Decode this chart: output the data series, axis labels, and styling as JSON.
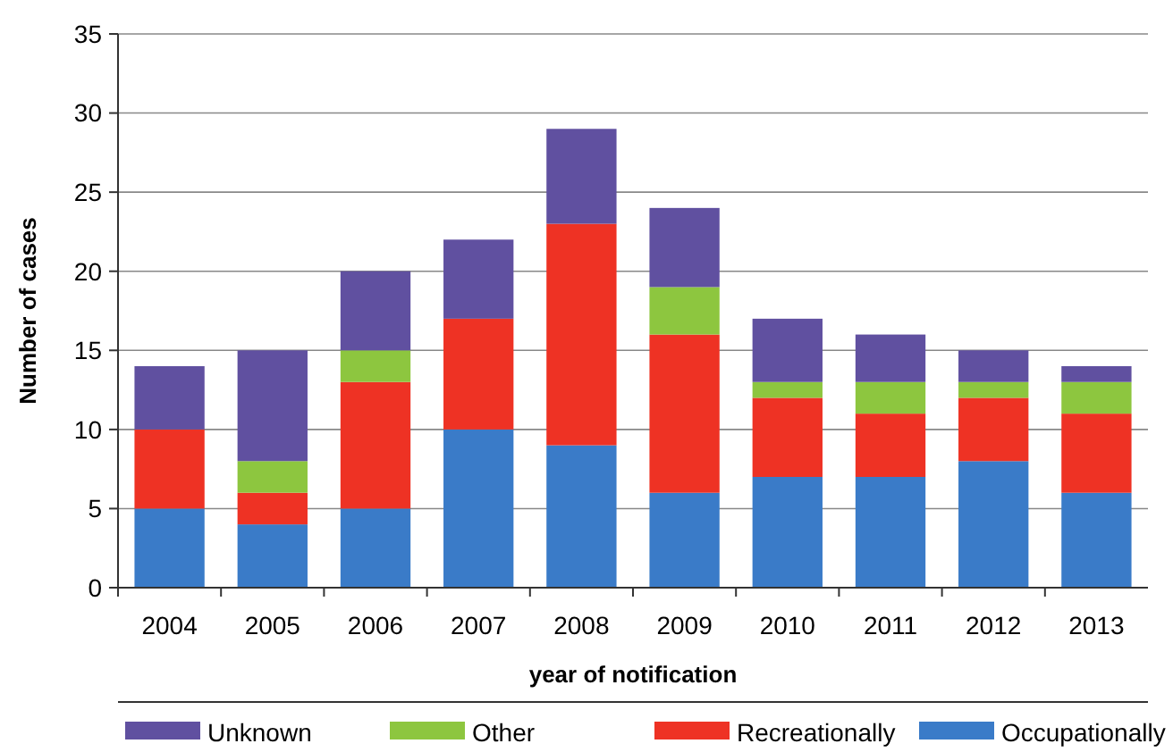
{
  "chart_data": {
    "type": "bar",
    "stacked": true,
    "xlabel": "year of notification",
    "ylabel": "Number of cases",
    "categories": [
      "2004",
      "2005",
      "2006",
      "2007",
      "2008",
      "2009",
      "2010",
      "2011",
      "2012",
      "2013"
    ],
    "series": [
      {
        "name": "Occupationally",
        "color": "#3a7bc8",
        "values": [
          5,
          4,
          5,
          10,
          9,
          6,
          7,
          7,
          8,
          6
        ]
      },
      {
        "name": "Recreationally",
        "color": "#ee3224",
        "values": [
          5,
          2,
          8,
          7,
          14,
          10,
          5,
          4,
          4,
          5
        ]
      },
      {
        "name": "Other",
        "color": "#8dc63f",
        "values": [
          0,
          2,
          2,
          0,
          0,
          3,
          1,
          2,
          1,
          2
        ]
      },
      {
        "name": "Unknown",
        "color": "#6050a0",
        "values": [
          4,
          7,
          5,
          5,
          6,
          5,
          4,
          3,
          2,
          1
        ]
      }
    ],
    "ylim": [
      0,
      35
    ],
    "yticks": [
      0,
      5,
      10,
      15,
      20,
      25,
      30,
      35
    ],
    "grid": "y",
    "legend": "bottom"
  }
}
